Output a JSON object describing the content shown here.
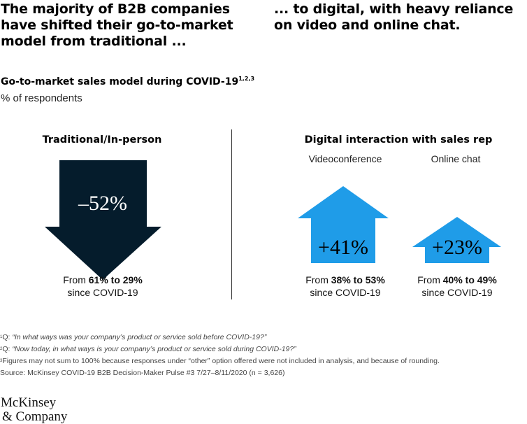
{
  "headline_left": [
    "The majority of B2B companies",
    "have shifted their go-to-market",
    "model from traditional ..."
  ],
  "headline_right": [
    "... to digital, with heavy reliance",
    "on video and online chat."
  ],
  "chart_data": {
    "type": "bar",
    "title": "Go-to-market sales model during COVID-19",
    "title_sup": "1,2,3",
    "unit": "% of respondents",
    "panels": [
      {
        "title": "Traditional/In-person",
        "items": [
          {
            "label": "",
            "change": -52,
            "change_label": "–52%",
            "from": 61,
            "to": 29,
            "caption_prefix": "From ",
            "caption_range": "61% to 29%",
            "caption_suffix": "since COVID-19",
            "color": "#051c2c"
          }
        ]
      },
      {
        "title": "Digital interaction with sales rep",
        "items": [
          {
            "label": "Videoconference",
            "change": 41,
            "change_label": "+41%",
            "from": 38,
            "to": 53,
            "caption_prefix": "From ",
            "caption_range": "38% to 53%",
            "caption_suffix": "since COVID-19",
            "color": "#1f9ce8"
          },
          {
            "label": "Online chat",
            "change": 23,
            "change_label": "+23%",
            "from": 40,
            "to": 49,
            "caption_prefix": "From ",
            "caption_range": "40% to 49%",
            "caption_suffix": "since COVID-19",
            "color": "#1f9ce8"
          }
        ]
      }
    ]
  },
  "footnotes": [
    {
      "sup": "1",
      "prefix": "Q: ",
      "text": "“In what ways was your company’s product or service sold before COVID-19?”"
    },
    {
      "sup": "2",
      "prefix": "Q: ",
      "text": "“Now today, in what ways is your company’s product or service sold during COVID-19?”"
    },
    {
      "sup": "3",
      "prefix": "",
      "text": "Figures may not sum to 100% because responses under “other” option offered were not included in analysis, and because of rounding."
    }
  ],
  "source": "Source: McKinsey COVID-19 B2B Decision-Maker Pulse #3 7/27–8/11/2020 (n = 3,626)",
  "logo": [
    "McKinsey",
    "& Company"
  ]
}
